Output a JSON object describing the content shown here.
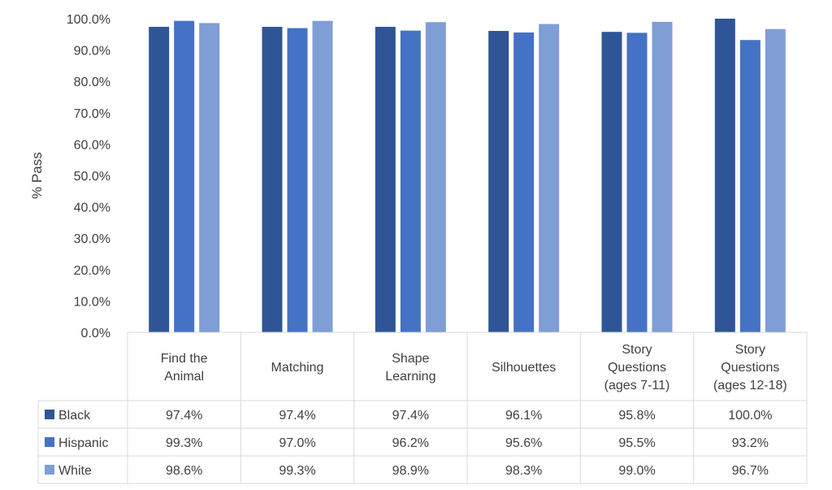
{
  "chart_data": {
    "type": "bar",
    "title": "",
    "xlabel": "",
    "ylabel": "% Pass",
    "ylim": [
      0,
      100
    ],
    "ytick_step": 10,
    "ytick_labels": [
      "0.0%",
      "10.0%",
      "20.0%",
      "30.0%",
      "40.0%",
      "50.0%",
      "60.0%",
      "70.0%",
      "80.0%",
      "90.0%",
      "100.0%"
    ],
    "grid": false,
    "legend": "data-table",
    "categories": [
      [
        "Find the",
        "Animal"
      ],
      [
        "Matching"
      ],
      [
        "Shape",
        "Learning"
      ],
      [
        "Silhouettes"
      ],
      [
        "Story",
        "Questions",
        "(ages 7-11)"
      ],
      [
        "Story",
        "Questions",
        "(ages 12-18)"
      ]
    ],
    "series": [
      {
        "name": "Black",
        "color": "#2F5597",
        "values": [
          97.4,
          97.4,
          97.4,
          96.1,
          95.8,
          100.0
        ],
        "labels": [
          "97.4%",
          "97.4%",
          "97.4%",
          "96.1%",
          "95.8%",
          "100.0%"
        ]
      },
      {
        "name": "Hispanic",
        "color": "#4472C4",
        "values": [
          99.3,
          97.0,
          96.2,
          95.6,
          95.5,
          93.2
        ],
        "labels": [
          "99.3%",
          "97.0%",
          "96.2%",
          "95.6%",
          "95.5%",
          "93.2%"
        ]
      },
      {
        "name": "White",
        "color": "#7F9ED5",
        "values": [
          98.6,
          99.3,
          98.9,
          98.3,
          99.0,
          96.7
        ],
        "labels": [
          "98.6%",
          "99.3%",
          "98.9%",
          "98.3%",
          "99.0%",
          "96.7%"
        ]
      }
    ],
    "colors": {
      "grid_line": "#D9D9D9",
      "axis": "#D9D9D9",
      "text": "#404040"
    }
  }
}
